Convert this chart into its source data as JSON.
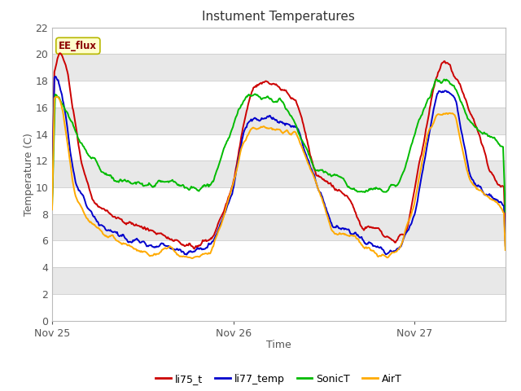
{
  "title": "Instument Temperatures",
  "xlabel": "Time",
  "ylabel": "Temperature (C)",
  "ylim": [
    0,
    22
  ],
  "yticks": [
    0,
    2,
    4,
    6,
    8,
    10,
    12,
    14,
    16,
    18,
    20,
    22
  ],
  "xtick_labels": [
    "Nov 25",
    "Nov 26",
    "Nov 27"
  ],
  "annotation_text": "EE_flux",
  "fig_bg": "#ffffff",
  "plot_bg": "#ffffff",
  "band_light": "#ffffff",
  "band_dark": "#e8e8e8",
  "colors": {
    "li75_t": "#cc0000",
    "li77_temp": "#0000cc",
    "SonicT": "#00bb00",
    "AirT": "#ffaa00"
  },
  "series_names": [
    "li75_t",
    "li77_temp",
    "SonicT",
    "AirT"
  ]
}
